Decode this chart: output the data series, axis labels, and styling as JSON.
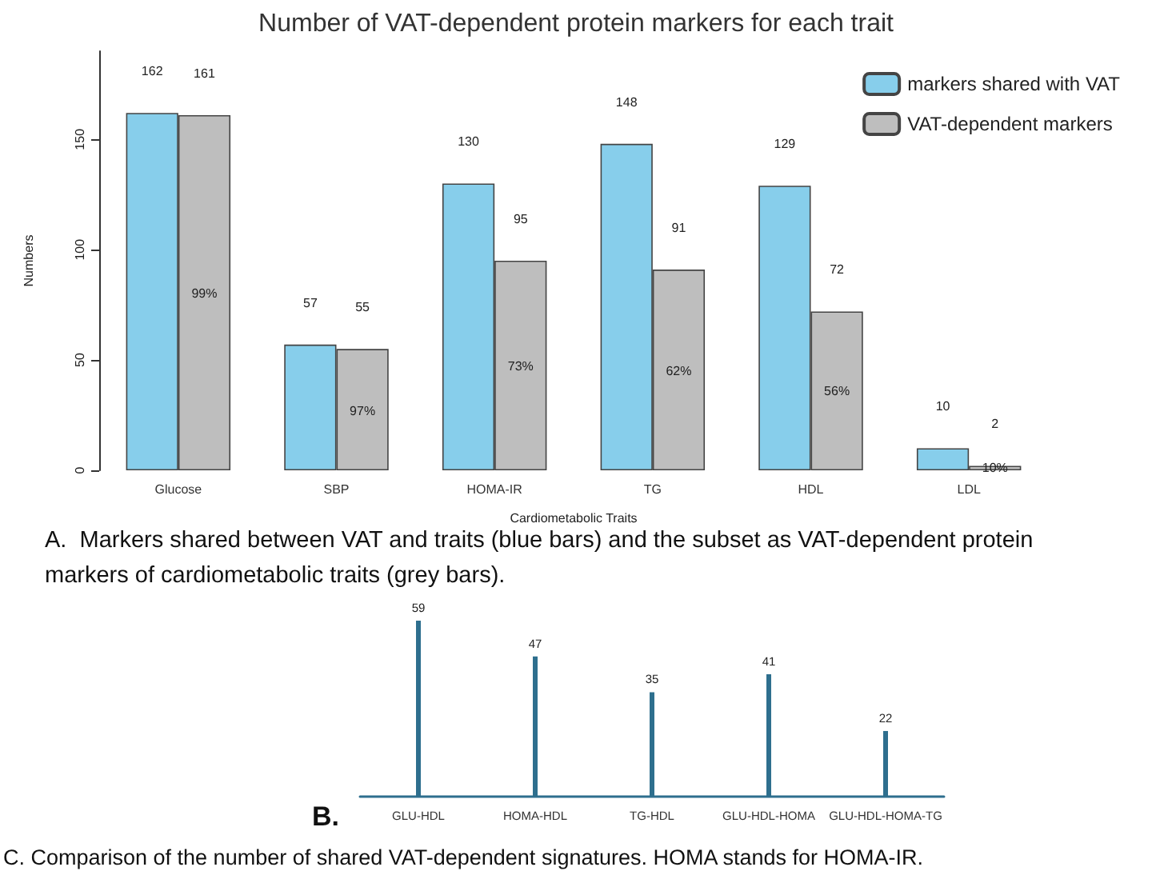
{
  "chart_data": [
    {
      "type": "bar",
      "title": "Number of VAT-dependent protein markers for each trait",
      "xlabel": "Cardiometabolic Traits",
      "ylabel": "Numbers",
      "categories": [
        "Glucose",
        "SBP",
        "HOMA-IR",
        "TG",
        "HDL",
        "LDL"
      ],
      "series": [
        {
          "name": "markers shared with VAT",
          "color": "#87ceeb",
          "values": [
            162,
            57,
            130,
            148,
            129,
            10
          ]
        },
        {
          "name": "VAT-dependent markers",
          "color": "#bebebe",
          "values": [
            161,
            55,
            95,
            91,
            72,
            2
          ]
        }
      ],
      "ylim": [
        0,
        190
      ],
      "yticks": [
        0,
        50,
        100,
        150
      ],
      "grid": false,
      "legend": "top right",
      "data_labels": true,
      "annotations": [
        {
          "text": "99%",
          "x": "Glucose",
          "y": 80
        },
        {
          "text": "97%",
          "x": "SBP",
          "y": 27
        },
        {
          "text": "73%",
          "x": "HOMA-IR",
          "y": 47
        },
        {
          "text": "62%",
          "x": "TG",
          "y": 45
        },
        {
          "text": "56%",
          "x": "HDL",
          "y": 36
        },
        {
          "text": "10%",
          "x": "LDL",
          "y": 1
        },
        "A.  Markers shared between VAT and traits (blue bars) and the subset as VAT-dependent protein markers of cardiometabolic traits (grey bars)."
      ]
    },
    {
      "type": "bar",
      "categories": [
        "GLU-HDL",
        "HOMA-HDL",
        "TG-HDL",
        "GLU-HDL-HOMA",
        "GLU-HDL-HOMA-TG"
      ],
      "series": [
        {
          "color": "#2e6f8e",
          "values": [
            59,
            47,
            35,
            41,
            22
          ]
        }
      ],
      "data_labels": true,
      "tick_labels": "x",
      "annotations": [
        "B.",
        "C. Comparison of the number of shared VAT-dependent signatures. HOMA stands for HOMA-IR."
      ]
    }
  ]
}
